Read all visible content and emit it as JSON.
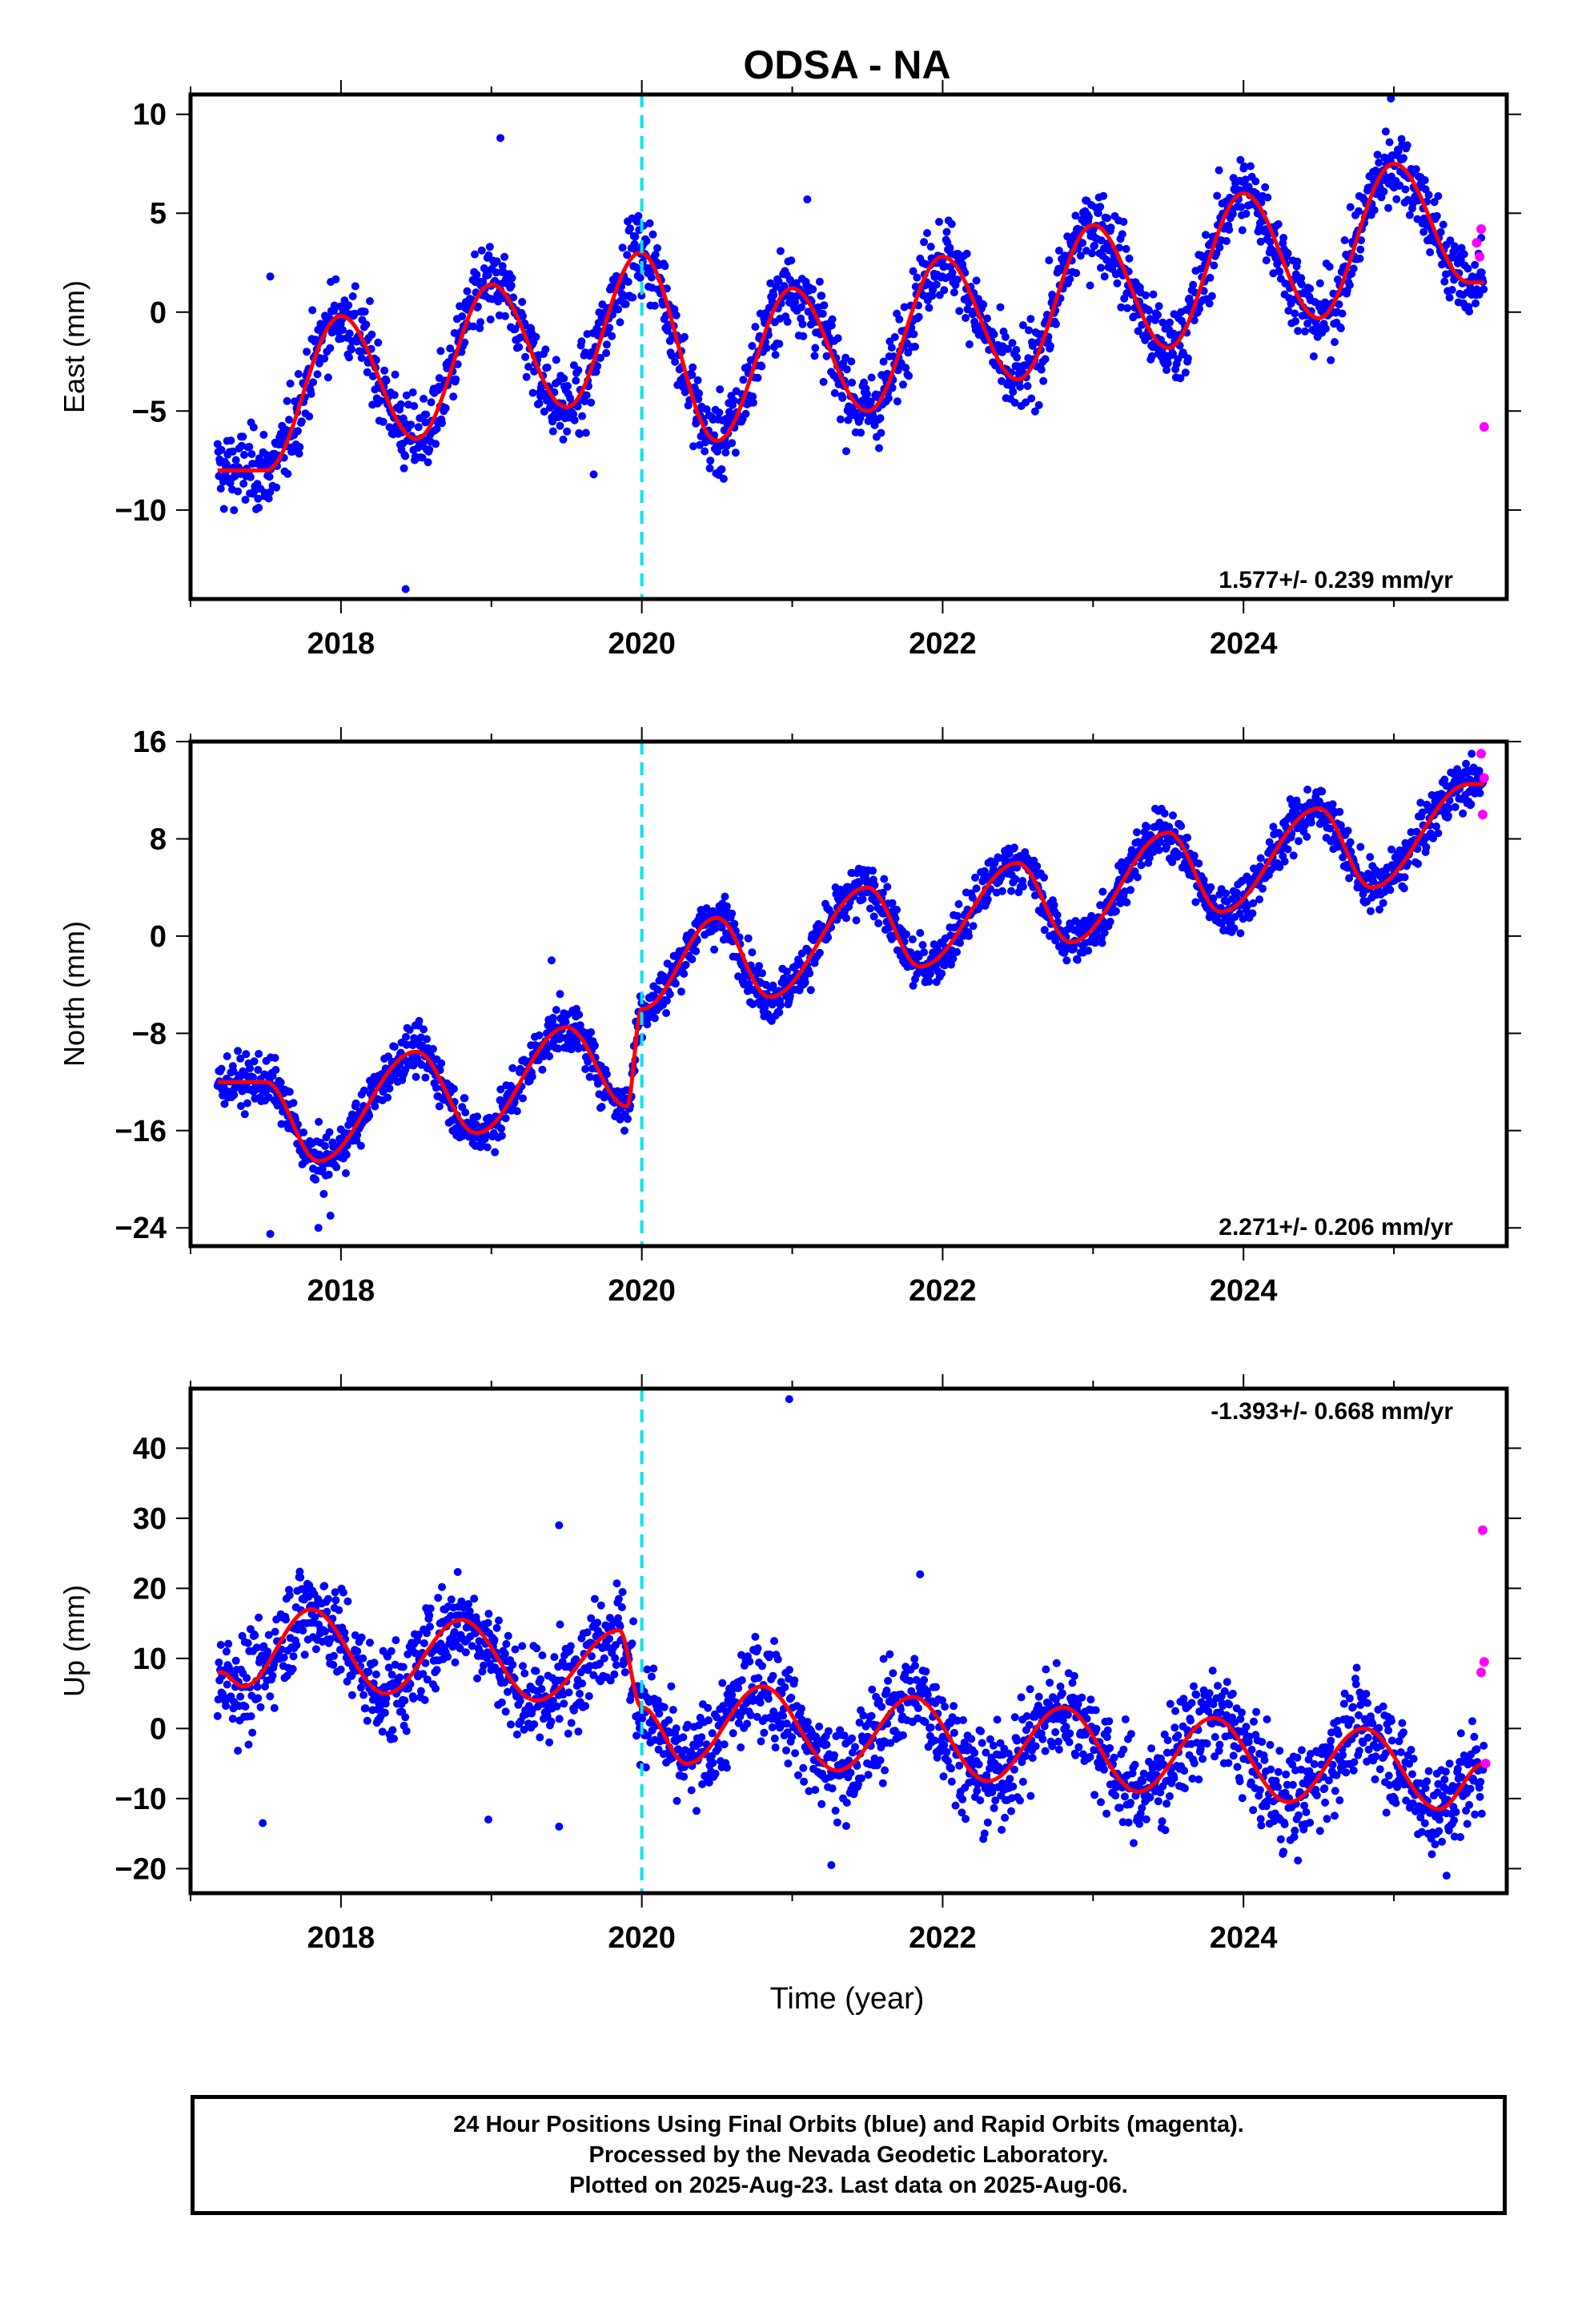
{
  "chart_data": {
    "type": "scatter",
    "title": "ODSA - NA",
    "xlabel": "Time (year)",
    "xlim": [
      2017.0,
      2025.75
    ],
    "x_ticks": [
      "2018",
      "2020",
      "2022",
      "2024"
    ],
    "x_tick_values": [
      2018,
      2020,
      2022,
      2024
    ],
    "event_line_x": 2020.0,
    "colors": {
      "final": "#0000ff",
      "rapid": "#ff00ff",
      "model": "#ff0000",
      "event": "#00e5ee"
    },
    "data_span": [
      2017.18,
      2025.6
    ],
    "panels": [
      {
        "ylabel": "East (mm)",
        "ylim": [
          -14.5,
          11
        ],
        "yticks": [
          -10,
          -5,
          0,
          5,
          10
        ],
        "ytick_labels": [
          "−10",
          "−5",
          "0",
          "5",
          "10"
        ],
        "rate": "1.577+/- 0.239 mm/yr",
        "rate_position": "bottom-right",
        "model": {
          "t0": 2017.2,
          "start": -4.5,
          "rate": 1.3,
          "s1": 0.2,
          "c1": -4.0,
          "s2": 0,
          "c2": 0,
          "offset_at": 2020.0,
          "offset": -3.3
        },
        "noise": 1.0,
        "samples": [
          [
            2017.5,
            -8.0
          ],
          [
            2018.0,
            -0.2
          ],
          [
            2018.5,
            -6.4
          ],
          [
            2019.0,
            1.4
          ],
          [
            2019.5,
            -4.8
          ],
          [
            2019.99,
            3.0
          ],
          [
            2020.5,
            -6.5
          ],
          [
            2021.0,
            1.2
          ],
          [
            2021.5,
            -5.0
          ],
          [
            2022.0,
            2.8
          ],
          [
            2022.5,
            -3.4
          ],
          [
            2023.0,
            4.4
          ],
          [
            2023.5,
            -1.8
          ],
          [
            2024.0,
            6.0
          ],
          [
            2024.5,
            -0.3
          ],
          [
            2025.0,
            7.5
          ],
          [
            2025.5,
            1.5
          ]
        ],
        "rapid": [
          [
            2025.55,
            3.5
          ],
          [
            2025.58,
            4.2
          ],
          [
            2025.6,
            -5.8
          ],
          [
            2025.57,
            2.8
          ]
        ],
        "outliers": [
          [
            2018.43,
            -14.0
          ],
          [
            2019.06,
            8.8
          ],
          [
            2021.1,
            5.7
          ],
          [
            2024.98,
            10.8
          ],
          [
            2017.53,
            1.8
          ],
          [
            2019.68,
            -8.2
          ]
        ]
      },
      {
        "ylabel": "North (mm)",
        "ylim": [
          -25.5,
          16
        ],
        "yticks": [
          -24,
          -16,
          -8,
          0,
          8,
          16
        ],
        "ytick_labels": [
          "−24",
          "−16",
          "−8",
          "0",
          "8",
          "16"
        ],
        "rate": "2.271+/- 0.206 mm/yr",
        "rate_position": "bottom-right",
        "model": {
          "t0": 2017.2,
          "start": -17.0,
          "rate": 2.3,
          "s1": 0,
          "c1": 0,
          "s2": 0,
          "c2": 0,
          "offset_at": 2020.0,
          "offset": 7.5
        },
        "noise": 1.0,
        "samples": [
          [
            2017.5,
            -12.0
          ],
          [
            2017.85,
            -18.5
          ],
          [
            2018.5,
            -9.5
          ],
          [
            2018.9,
            -16.2
          ],
          [
            2019.5,
            -7.5
          ],
          [
            2019.9,
            -14.0
          ],
          [
            2020.0,
            -6.0
          ],
          [
            2020.5,
            1.5
          ],
          [
            2020.85,
            -5.0
          ],
          [
            2021.5,
            4.0
          ],
          [
            2021.85,
            -2.5
          ],
          [
            2022.5,
            6.0
          ],
          [
            2022.85,
            -0.5
          ],
          [
            2023.5,
            8.5
          ],
          [
            2023.85,
            2.0
          ],
          [
            2024.5,
            10.5
          ],
          [
            2024.85,
            4.0
          ],
          [
            2025.5,
            12.5
          ]
        ],
        "rapid": [
          [
            2025.58,
            15.0
          ],
          [
            2025.6,
            13.0
          ],
          [
            2025.59,
            10.0
          ]
        ],
        "outliers": [
          [
            2017.53,
            -24.5
          ],
          [
            2017.93,
            -23.0
          ],
          [
            2019.4,
            -2.0
          ],
          [
            2017.85,
            -24.0
          ]
        ]
      },
      {
        "ylabel": "Up (mm)",
        "ylim": [
          -23.5,
          48.5
        ],
        "yticks": [
          -20,
          -10,
          0,
          10,
          20,
          30,
          40
        ],
        "ytick_labels": [
          "−20",
          "−10",
          "0",
          "10",
          "20",
          "30",
          "40"
        ],
        "rate": "-1.393+/- 0.668 mm/yr",
        "rate_position": "top-right",
        "model": {
          "t0": 2017.2,
          "start": 7.0,
          "rate": -1.4,
          "s1": 0,
          "c1": 0,
          "s2": 0,
          "c2": 0,
          "offset_at": 2020.0,
          "offset": -8.0
        },
        "noise": 3.5,
        "samples": [
          [
            2017.2,
            8.0
          ],
          [
            2017.35,
            6.0
          ],
          [
            2017.8,
            17.0
          ],
          [
            2018.3,
            5.0
          ],
          [
            2018.8,
            15.5
          ],
          [
            2019.3,
            4.0
          ],
          [
            2019.85,
            14.0
          ],
          [
            2020.0,
            3.0
          ],
          [
            2020.3,
            -5.0
          ],
          [
            2020.8,
            6.0
          ],
          [
            2021.3,
            -6.0
          ],
          [
            2021.8,
            4.5
          ],
          [
            2022.3,
            -7.5
          ],
          [
            2022.8,
            3.0
          ],
          [
            2023.3,
            -9.0
          ],
          [
            2023.8,
            1.5
          ],
          [
            2024.3,
            -10.5
          ],
          [
            2024.8,
            0.0
          ],
          [
            2025.3,
            -11.5
          ],
          [
            2025.6,
            -5.0
          ]
        ],
        "rapid": [
          [
            2025.59,
            28.3
          ],
          [
            2025.6,
            9.5
          ],
          [
            2025.58,
            8.0
          ],
          [
            2025.61,
            -5.0
          ]
        ],
        "outliers": [
          [
            2020.98,
            47.0
          ],
          [
            2017.48,
            -13.5
          ],
          [
            2021.26,
            -19.5
          ],
          [
            2025.35,
            -21.0
          ],
          [
            2019.45,
            29.0
          ],
          [
            2019.45,
            -14.0
          ],
          [
            2018.98,
            -13.0
          ],
          [
            2021.85,
            22.0
          ]
        ]
      }
    ]
  },
  "footer": {
    "line1": "24 Hour Positions Using Final Orbits (blue) and Rapid Orbits (magenta).",
    "line2": "Processed by the Nevada Geodetic Laboratory.",
    "line3": "Plotted on 2025-Aug-23. Last data on 2025-Aug-06."
  }
}
